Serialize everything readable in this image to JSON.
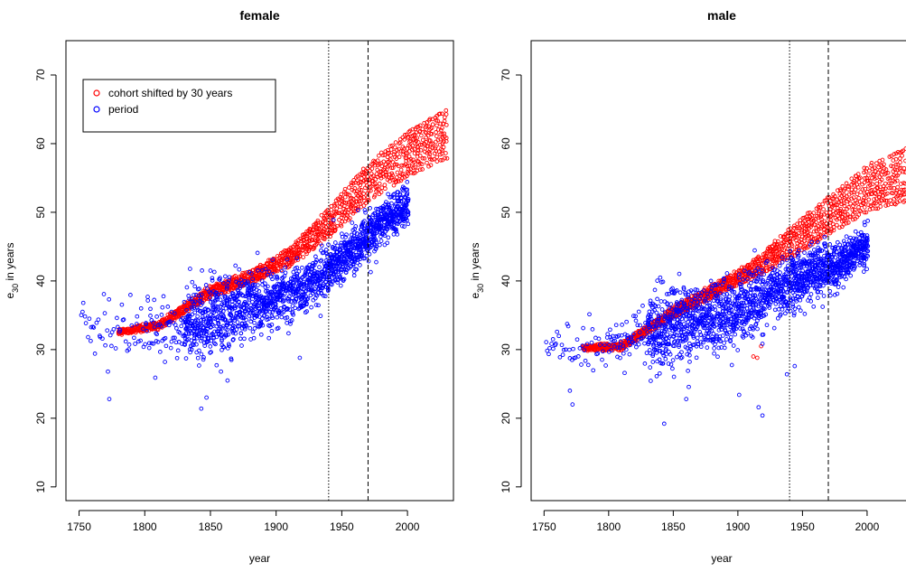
{
  "chart_data": [
    {
      "type": "scatter",
      "title": "female",
      "xlabel": "year",
      "ylabel_main": "e",
      "ylabel_sub": "30",
      "ylabel_rest": " in years",
      "xlim": [
        1740,
        2035
      ],
      "ylim": [
        8,
        75
      ],
      "xticks": [
        "1750",
        "1800",
        "1850",
        "1900",
        "1950",
        "2000"
      ],
      "yticks": [
        "10",
        "20",
        "30",
        "40",
        "50",
        "60",
        "70"
      ],
      "vlines": [
        {
          "x": 1940,
          "style": "dotted"
        },
        {
          "x": 1970,
          "style": "dashed"
        }
      ],
      "legend": {
        "position": "top-left",
        "entries": [
          "cohort shifted by 30 years",
          "period"
        ]
      },
      "series": [
        {
          "name": "cohort shifted by 30 years",
          "color": "#ff0000",
          "marker": "open-circle",
          "x_range": [
            1780,
            2030
          ],
          "anchors": [
            [
              1780,
              32.5
            ],
            [
              1810,
              33.5
            ],
            [
              1850,
              38.5
            ],
            [
              1880,
              40.5
            ],
            [
              1910,
              43.5
            ],
            [
              1940,
              48.5
            ],
            [
              1970,
              54.5
            ],
            [
              2000,
              58.5
            ],
            [
              2030,
              61.5
            ]
          ],
          "band_width": [
            [
              1780,
              0.6
            ],
            [
              1900,
              2.0
            ],
            [
              1960,
              5.0
            ],
            [
              2030,
              7.0
            ]
          ]
        },
        {
          "name": "period",
          "color": "#0000ff",
          "marker": "open-circle",
          "x_range": [
            1751,
            2000
          ],
          "anchors": [
            [
              1751,
              33.5
            ],
            [
              1800,
              33.0
            ],
            [
              1840,
              34.0
            ],
            [
              1870,
              35.5
            ],
            [
              1900,
              37.5
            ],
            [
              1930,
              40.0
            ],
            [
              1960,
              45.0
            ],
            [
              1980,
              48.5
            ],
            [
              2000,
              51.0
            ]
          ],
          "spread": [
            [
              1751,
              3.0
            ],
            [
              1850,
              5.0
            ],
            [
              1920,
              3.5
            ],
            [
              2000,
              2.5
            ]
          ],
          "outliers": [
            [
              1773,
              22.8
            ],
            [
              1772,
              26.8
            ],
            [
              1808,
              25.9
            ],
            [
              1843,
              21.4
            ],
            [
              1847,
              23.0
            ],
            [
              1858,
              26.8
            ],
            [
              1863,
              25.5
            ],
            [
              1866,
              28.5
            ],
            [
              1918,
              28.8
            ],
            [
              1850,
              41.5
            ],
            [
              1853,
              41.3
            ]
          ]
        }
      ]
    },
    {
      "type": "scatter",
      "title": "male",
      "xlabel": "year",
      "ylabel_main": "e",
      "ylabel_sub": "30",
      "ylabel_rest": " in years",
      "xlim": [
        1740,
        2035
      ],
      "ylim": [
        8,
        75
      ],
      "xticks": [
        "1750",
        "1800",
        "1850",
        "1900",
        "1950",
        "2000"
      ],
      "yticks": [
        "10",
        "20",
        "30",
        "40",
        "50",
        "60",
        "70"
      ],
      "vlines": [
        {
          "x": 1940,
          "style": "dotted"
        },
        {
          "x": 1970,
          "style": "dashed"
        }
      ],
      "series": [
        {
          "name": "cohort shifted by 30 years",
          "color": "#ff0000",
          "marker": "open-circle",
          "x_range": [
            1780,
            2030
          ],
          "anchors": [
            [
              1780,
              30.2
            ],
            [
              1810,
              30.5
            ],
            [
              1850,
              35.5
            ],
            [
              1880,
              38.5
            ],
            [
              1910,
              41.5
            ],
            [
              1940,
              45.5
            ],
            [
              1970,
              49.5
            ],
            [
              2000,
              53.5
            ],
            [
              2030,
              55.5
            ]
          ],
          "band_width": [
            [
              1780,
              0.6
            ],
            [
              1900,
              2.0
            ],
            [
              1960,
              5.0
            ],
            [
              2030,
              7.5
            ]
          ],
          "outliers": [
            [
              1912,
              29.0
            ],
            [
              1915,
              28.8
            ],
            [
              1918,
              30.5
            ]
          ]
        },
        {
          "name": "period",
          "color": "#0000ff",
          "marker": "open-circle",
          "x_range": [
            1751,
            2000
          ],
          "anchors": [
            [
              1751,
              31.0
            ],
            [
              1800,
              31.0
            ],
            [
              1840,
              33.0
            ],
            [
              1870,
              34.5
            ],
            [
              1900,
              35.5
            ],
            [
              1930,
              38.5
            ],
            [
              1960,
              41.5
            ],
            [
              1980,
              42.5
            ],
            [
              2000,
              45.5
            ]
          ],
          "spread": [
            [
              1751,
              3.0
            ],
            [
              1850,
              5.0
            ],
            [
              1920,
              4.0
            ],
            [
              2000,
              2.5
            ]
          ],
          "outliers": [
            [
              1770,
              24.0
            ],
            [
              1772,
              22.0
            ],
            [
              1843,
              19.2
            ],
            [
              1860,
              22.8
            ],
            [
              1916,
              21.6
            ],
            [
              1919,
              20.4
            ],
            [
              1938,
              26.4
            ],
            [
              1944,
              27.6
            ],
            [
              1901,
              23.4
            ]
          ]
        }
      ]
    }
  ]
}
